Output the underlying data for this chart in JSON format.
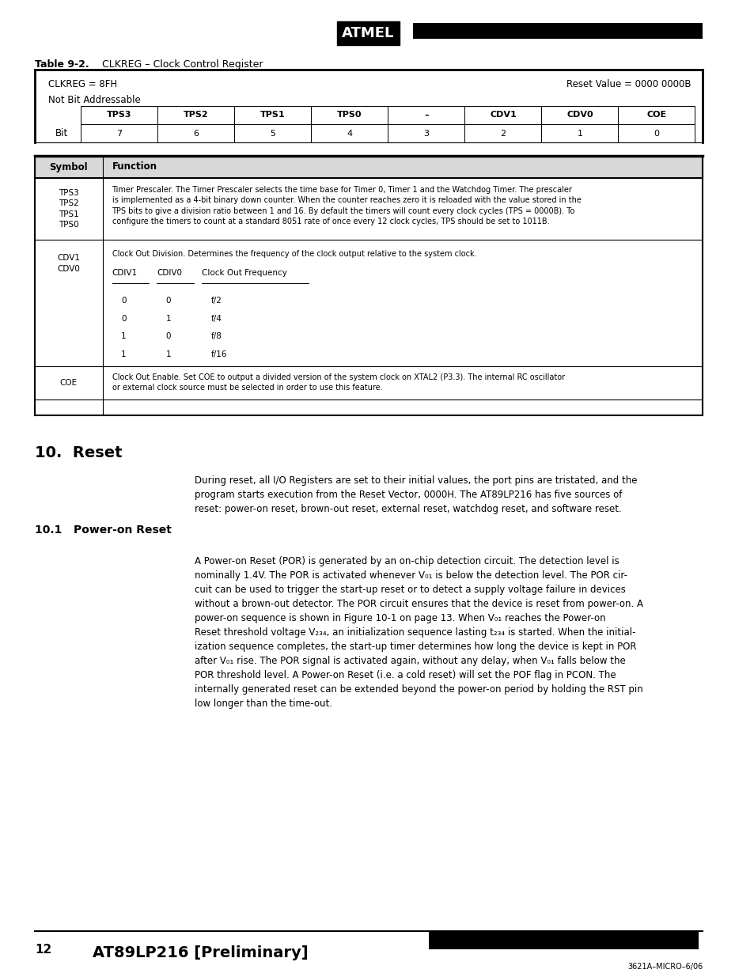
{
  "page_width": 9.54,
  "page_height": 12.35,
  "bg_color": "#ffffff",
  "table_title": "Table 9-2.",
  "table_subtitle": "CLKREG – Clock Control Register",
  "clkreg_label": "CLKREG = 8FH",
  "reset_value": "Reset Value = 0000 0000B",
  "not_bit_addr": "Not Bit Addressable",
  "bit_headers": [
    "TPS3",
    "TPS2",
    "TPS1",
    "TPS0",
    "–",
    "CDV1",
    "CDV0",
    "COE"
  ],
  "bit_numbers": [
    "7",
    "6",
    "5",
    "4",
    "3",
    "2",
    "1",
    "0"
  ],
  "bit_label": "Bit",
  "func_table_headers": [
    "Symbol",
    "Function"
  ],
  "cdv_header": [
    "CDIV1",
    "CDIV0",
    "Clock Out Frequency"
  ],
  "cdv_rows": [
    [
      "0",
      "0",
      "f/2"
    ],
    [
      "0",
      "1",
      "f/4"
    ],
    [
      "1",
      "0",
      "f/8"
    ],
    [
      "1",
      "1",
      "f/16"
    ]
  ],
  "section_title": "10.  Reset",
  "reset_para": "During reset, all I/O Registers are set to their initial values, the port pins are tristated, and the\nprogram starts execution from the Reset Vector, 0000H. The AT89LP216 has five sources of\nreset: power-on reset, brown-out reset, external reset, watchdog reset, and software reset.",
  "subsection_title": "10.1   Power-on Reset",
  "footer_page": "12",
  "footer_title": "AT89LP216 [Preliminary]",
  "footer_ref": "3621A–MICRO–6/06"
}
